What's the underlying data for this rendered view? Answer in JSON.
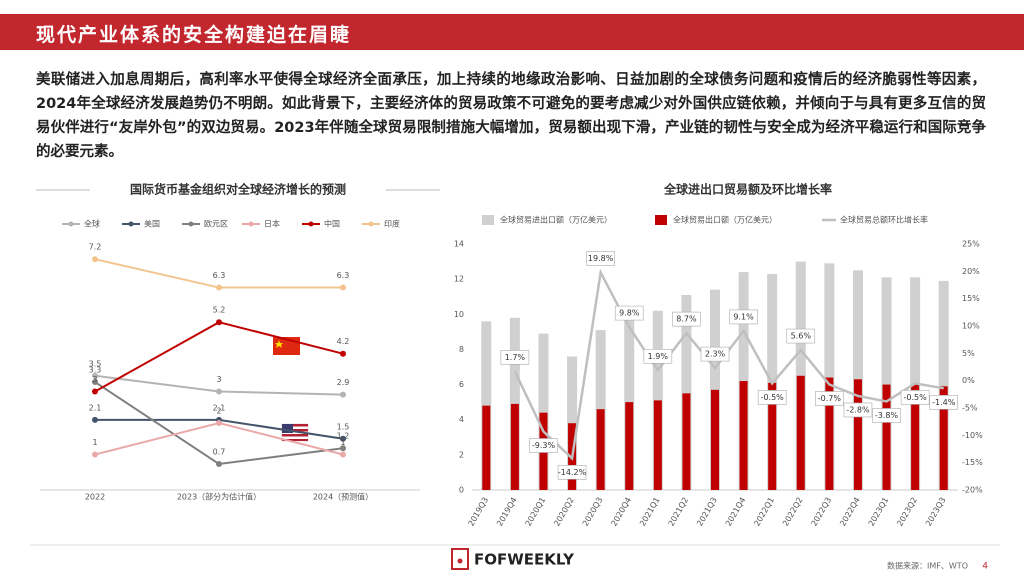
{
  "header": {
    "title": "现代产业体系的安全构建迫在眉睫"
  },
  "body": {
    "paragraph": "美联储进入加息周期后，高利率水平使得全球经济全面承压，加上持续的地缘政治影响、日益加剧的全球债务问题和疫情后的经济脆弱性等因素，2024年全球经济发展趋势仍不明朗。如此背景下，主要经济体的贸易政策不可避免的要考虑减少对外国供应链依赖，并倾向于与具有更多互信的贸易伙伴进行“友岸外包”的双边贸易。2023年伴随全球贸易限制措施大幅增加，贸易额出现下滑，产业链的韧性与安全成为经济平稳运行和国际竞争的必要元素。"
  },
  "chart_data": [
    {
      "type": "line",
      "title": "国际货币基金组织对全球经济增长的预测",
      "categories": [
        "2022",
        "2023（部分为估计值）",
        "2024（预测值）"
      ],
      "ylim": [
        0,
        8
      ],
      "series": [
        {
          "name": "全球",
          "color": "#b4b4b4",
          "values": [
            3.5,
            3,
            2.9
          ]
        },
        {
          "name": "美国",
          "color": "#44546a",
          "values": [
            2.1,
            2.1,
            1.5
          ]
        },
        {
          "name": "欧元区",
          "color": "#7f7f7f",
          "values": [
            3.3,
            0.7,
            1.2
          ]
        },
        {
          "name": "日本",
          "color": "#eaa8a8",
          "values": [
            1,
            2,
            1
          ]
        },
        {
          "name": "中国",
          "color": "#c00000",
          "values": [
            3,
            5.2,
            4.2
          ]
        },
        {
          "name": "印度",
          "color": "#f4c48e",
          "values": [
            7.2,
            6.3,
            6.3
          ]
        }
      ]
    },
    {
      "type": "bar",
      "title": "全球进出口贸易额及环比增长率",
      "categories": [
        "2019Q3",
        "2019Q4",
        "2020Q1",
        "2020Q2",
        "2020Q3",
        "2020Q4",
        "2021Q1",
        "2021Q2",
        "2021Q3",
        "2021Q4",
        "2022Q1",
        "2022Q2",
        "2022Q3",
        "2022Q4",
        "2023Q1",
        "2023Q2",
        "2023Q3"
      ],
      "ylim": [
        0,
        14
      ],
      "yticks": [
        0,
        2,
        4,
        6,
        8,
        10,
        12,
        14
      ],
      "y2lim": [
        -20,
        25
      ],
      "y2ticks": [
        {
          "value": -20,
          "label": "-20%"
        },
        {
          "value": -15,
          "label": "-15%"
        },
        {
          "value": -10,
          "label": "-10%"
        },
        {
          "value": -5,
          "label": "-5%"
        },
        {
          "value": 0,
          "label": "0%"
        },
        {
          "value": 5,
          "label": "5%"
        },
        {
          "value": 10,
          "label": "10%"
        },
        {
          "value": 15,
          "label": "15%"
        },
        {
          "value": 20,
          "label": "20%"
        },
        {
          "value": 25,
          "label": "25%"
        }
      ],
      "series": [
        {
          "name": "全球贸易进出口额（万亿美元）",
          "color": "#d0d0d0",
          "values": [
            9.6,
            9.8,
            8.9,
            7.6,
            9.1,
            10.0,
            10.2,
            11.1,
            11.4,
            12.4,
            12.3,
            13.0,
            12.9,
            12.5,
            12.1,
            12.1,
            11.9
          ]
        },
        {
          "name": "全球贸易出口额（万亿美元）",
          "color": "#c00000",
          "values": [
            4.8,
            4.9,
            4.4,
            3.8,
            4.6,
            5.0,
            5.1,
            5.5,
            5.7,
            6.2,
            6.1,
            6.5,
            6.4,
            6.3,
            6.0,
            6.0,
            5.9
          ]
        },
        {
          "name": "全球贸易总额环比增长率",
          "color": "#bfbfbf",
          "type": "line",
          "axis": "y2",
          "values": [
            null,
            1.7,
            -9.3,
            -14.2,
            19.8,
            9.8,
            1.9,
            8.7,
            2.3,
            9.1,
            -0.5,
            5.6,
            -0.7,
            -2.8,
            -3.8,
            -0.5,
            -1.4
          ],
          "value_labels": [
            null,
            "1.7%",
            "-9.3%",
            "-14.2%",
            "19.8%",
            "9.8%",
            "1.9%",
            "8.7%",
            "2.3%",
            "9.1%",
            "-0.5%",
            "5.6%",
            "-0.7%",
            "-2.8%",
            "-3.8%",
            "-0.5%",
            "-1.4%"
          ]
        }
      ]
    }
  ],
  "footer": {
    "logo": "FOFWEEKLY",
    "source": "数据来源：IMF、WTO",
    "page": "4"
  }
}
